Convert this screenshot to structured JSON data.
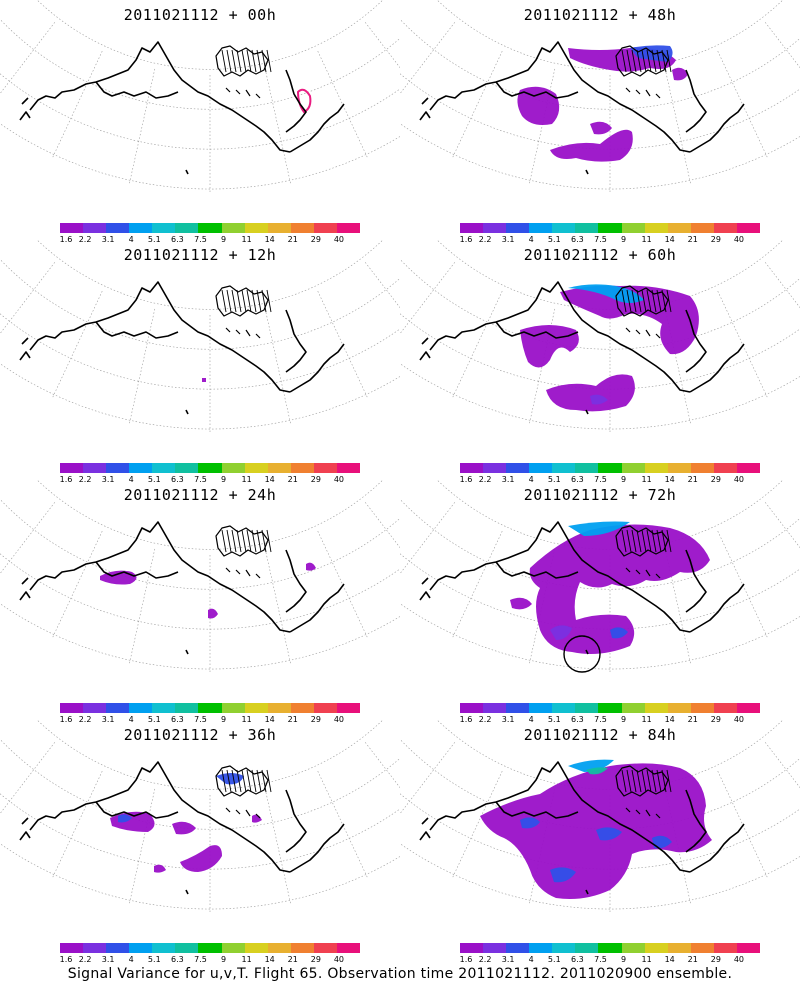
{
  "chart_data": [
    {
      "type": "heatmap",
      "title": "2011021112 + 00h",
      "lead_hours": 0
    },
    {
      "type": "heatmap",
      "title": "2011021112 + 48h",
      "lead_hours": 48
    },
    {
      "type": "heatmap",
      "title": "2011021112 + 12h",
      "lead_hours": 12
    },
    {
      "type": "heatmap",
      "title": "2011021112 + 60h",
      "lead_hours": 60
    },
    {
      "type": "heatmap",
      "title": "2011021112 + 24h",
      "lead_hours": 24
    },
    {
      "type": "heatmap",
      "title": "2011021112 + 72h",
      "lead_hours": 72
    },
    {
      "type": "heatmap",
      "title": "2011021112 + 36h",
      "lead_hours": 36
    },
    {
      "type": "heatmap",
      "title": "2011021112 + 84h",
      "lead_hours": 84
    }
  ],
  "colorbar": {
    "labels": [
      "1.6",
      "2.2",
      "3.1",
      "4",
      "5.1",
      "6.3",
      "7.5",
      "9",
      "11",
      "14",
      "21",
      "29",
      "40"
    ],
    "colors": [
      "#9a10c8",
      "#7a30e0",
      "#3050e8",
      "#00a0f0",
      "#10c0d0",
      "#10c0a0",
      "#00c000",
      "#90d030",
      "#d8d020",
      "#e8b030",
      "#f08030",
      "#f04050",
      "#e8107a"
    ]
  },
  "caption": "Signal Variance for u,v,T. Flight 65. Observation time 2011021112. 2011020900 ensemble."
}
